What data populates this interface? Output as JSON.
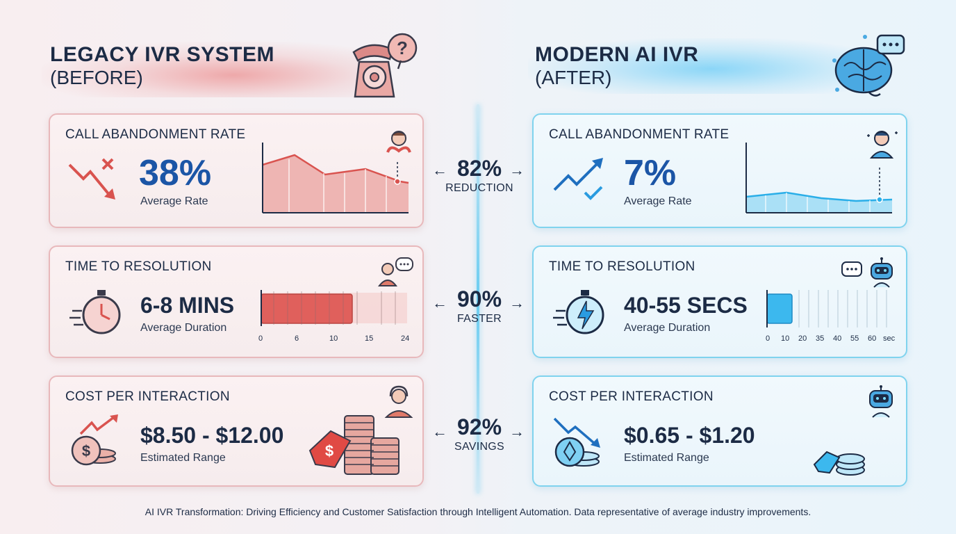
{
  "legacy": {
    "title": "LEGACY IVR SYSTEM",
    "subtitle": "(BEFORE)",
    "abandonment": {
      "label": "CALL ABANDONMENT RATE",
      "value": "38%",
      "caption": "Average Rate"
    },
    "resolution": {
      "label": "TIME TO RESOLUTION",
      "value": "6-8 MINS",
      "caption": "Average Duration",
      "ticks": [
        "0",
        "6",
        "10",
        "15",
        "24"
      ],
      "bar_fill_max": 15,
      "bar_scale_max": 24
    },
    "cost": {
      "label": "COST PER INTERACTION",
      "value": "$8.50 - $12.00",
      "caption": "Estimated Range"
    }
  },
  "modern": {
    "title": "MODERN AI IVR",
    "subtitle": "(AFTER)",
    "abandonment": {
      "label": "CALL ABANDONMENT RATE",
      "value": "7%",
      "caption": "Average Rate"
    },
    "resolution": {
      "label": "TIME TO RESOLUTION",
      "value": "40-55 SECS",
      "caption": "Average Duration",
      "ticks": [
        "0",
        "10",
        "20",
        "35",
        "40",
        "55",
        "60",
        "sec"
      ]
    },
    "cost": {
      "label": "COST PER INTERACTION",
      "value": "$0.65 - $1.20",
      "caption": "Estimated Range"
    }
  },
  "improvements": [
    {
      "pct": "82%",
      "label": "REDUCTION"
    },
    {
      "pct": "90%",
      "label": "FASTER"
    },
    {
      "pct": "92%",
      "label": "SAVINGS"
    }
  ],
  "colors": {
    "legacy_accent": "#e46a6a",
    "modern_accent": "#3cb8ee",
    "text": "#1c2b45",
    "highlight_value": "#1b55a6"
  },
  "icons": {
    "legacy_header": "rotary-phone-question-icon",
    "modern_header": "ai-brain-chat-icon",
    "legacy_abandon": "downtrend-x-icon",
    "modern_abandon": "uptrend-check-icon",
    "legacy_time": "stopwatch-icon",
    "modern_time": "lightning-stopwatch-icon",
    "legacy_cost": "rising-dollar-coins-icon",
    "modern_cost": "falling-coin-icon"
  },
  "footer": "AI IVR Transformation: Driving Efficiency and Customer Satisfaction through Intelligent Automation. Data representative of average industry improvements."
}
